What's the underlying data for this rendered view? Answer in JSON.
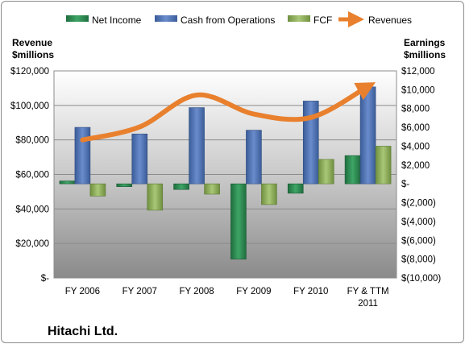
{
  "company": "Hitachi Ltd.",
  "colors": {
    "net_income": "#2e8b57",
    "cash_from_operations": "#4a6fae",
    "fcf": "#8fb05a",
    "revenues": "#e8802e"
  },
  "chart_data": {
    "type": "bar",
    "categories": [
      "FY 2006",
      "FY 2007",
      "FY 2008",
      "FY 2009",
      "FY 2010",
      "FY & TTM 2011"
    ],
    "series": [
      {
        "name": "Net Income",
        "type": "bar",
        "axis": "right",
        "values": [
          300,
          -300,
          -600,
          -8000,
          -1000,
          3000
        ]
      },
      {
        "name": "Cash from Operations",
        "type": "bar",
        "axis": "right",
        "values": [
          6000,
          5300,
          8100,
          5700,
          8800,
          10300
        ]
      },
      {
        "name": "FCF",
        "type": "bar",
        "axis": "right",
        "values": [
          -1300,
          -2800,
          -1100,
          -2200,
          2600,
          4000
        ]
      },
      {
        "name": "Revenues",
        "type": "line",
        "axis": "left",
        "values": [
          80000,
          87500,
          106000,
          95000,
          93000,
          111000
        ]
      }
    ],
    "left_axis": {
      "title": [
        "Revenue",
        "$millions"
      ],
      "ylim": [
        0,
        120000
      ],
      "ticks": [
        "$-",
        "$20,000",
        "$40,000",
        "$60,000",
        "$80,000",
        "$100,000",
        "$120,000"
      ]
    },
    "right_axis": {
      "title": [
        "Earnings",
        "$millions"
      ],
      "ylim": [
        -10000,
        12000
      ],
      "ticks": [
        "$(10,000)",
        "$(8,000)",
        "$(6,000)",
        "$(4,000)",
        "$(2,000)",
        "$-",
        "$2,000",
        "$4,000",
        "$6,000",
        "$8,000",
        "$10,000",
        "$12,000"
      ]
    },
    "x_tick_labels": [
      [
        "FY 2006"
      ],
      [
        "FY 2007"
      ],
      [
        "FY 2008"
      ],
      [
        "FY 2009"
      ],
      [
        "FY 2010"
      ],
      [
        "FY & TTM",
        "2011"
      ]
    ],
    "legend_position": "top",
    "grid": true
  }
}
